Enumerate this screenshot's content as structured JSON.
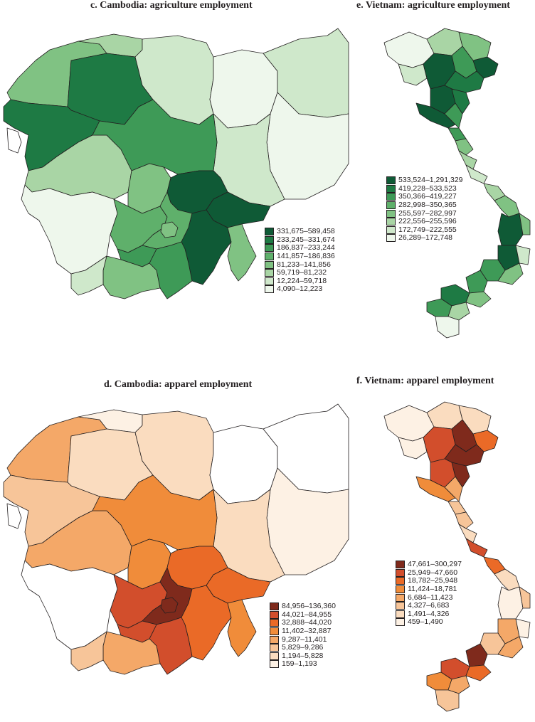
{
  "panels": {
    "c": {
      "title": "c. Cambodia: agriculture employment",
      "legend": [
        {
          "label": "331,675–589,458",
          "color": "#0f5a36"
        },
        {
          "label": "233,245–331,674",
          "color": "#1e7a44"
        },
        {
          "label": "186,837–233,244",
          "color": "#3e9a57"
        },
        {
          "label": "141,857–186,836",
          "color": "#5fb06b"
        },
        {
          "label": "81,233–141,856",
          "color": "#80c283"
        },
        {
          "label": "59,719–81,232",
          "color": "#a9d5a5"
        },
        {
          "label": "12,224–59,718",
          "color": "#cfe8cb"
        },
        {
          "label": "4,090–12,223",
          "color": "#eef7ec"
        }
      ]
    },
    "e": {
      "title": "e. Vietnam: agriculture employment",
      "legend": [
        {
          "label": "533,524–1,291,329",
          "color": "#0f5a36"
        },
        {
          "label": "419,228–533,523",
          "color": "#1e7a44"
        },
        {
          "label": "350,366–419,227",
          "color": "#3e9a57"
        },
        {
          "label": "282,998–350,365",
          "color": "#5fb06b"
        },
        {
          "label": "255,597–282,997",
          "color": "#80c283"
        },
        {
          "label": "222,556–255,596",
          "color": "#a9d5a5"
        },
        {
          "label": "172,749–222,555",
          "color": "#cfe8cb"
        },
        {
          "label": "26,289–172,748",
          "color": "#eef7ec"
        }
      ]
    },
    "d": {
      "title": "d. Cambodia: apparel employment",
      "legend": [
        {
          "label": "84,956–136,360",
          "color": "#7f2a1c"
        },
        {
          "label": "44,021–84,955",
          "color": "#d24e2c"
        },
        {
          "label": "32,888–44,020",
          "color": "#ea6a27"
        },
        {
          "label": "11,402–32,887",
          "color": "#f08c3a"
        },
        {
          "label": "9,287–11,401",
          "color": "#f4a868"
        },
        {
          "label": "5,829–9,286",
          "color": "#f7c599"
        },
        {
          "label": "1,194–5,828",
          "color": "#fadcbf"
        },
        {
          "label": "159–1,193",
          "color": "#fdf1e4"
        }
      ]
    },
    "f": {
      "title": "f. Vietnam: apparel employment",
      "legend": [
        {
          "label": "47,661–300,297",
          "color": "#7f2a1c"
        },
        {
          "label": "25,949–47,660",
          "color": "#d24e2c"
        },
        {
          "label": "18,782–25,948",
          "color": "#ea6a27"
        },
        {
          "label": "11,424–18,781",
          "color": "#f08c3a"
        },
        {
          "label": "6,684–11,423",
          "color": "#f4a868"
        },
        {
          "label": "4,327–6,683",
          "color": "#f7c599"
        },
        {
          "label": "1,491–4,326",
          "color": "#fadcbf"
        },
        {
          "label": "459–1,490",
          "color": "#fdf1e4"
        }
      ]
    }
  }
}
